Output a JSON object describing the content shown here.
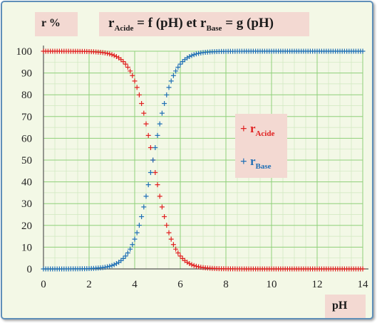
{
  "title": {
    "r1": "r",
    "s1": "Acide",
    "mid": " = f (pH) et ",
    "r2": "r",
    "s2": "Base",
    "end": " = g (pH)"
  },
  "chart_data": {
    "type": "scatter",
    "ylabel": "r %",
    "xlabel": "pH",
    "xlim": [
      0,
      14
    ],
    "ylim": [
      0,
      100
    ],
    "x_ticks": [
      0,
      2,
      4,
      6,
      8,
      10,
      12,
      14
    ],
    "y_ticks": [
      0,
      10,
      20,
      30,
      40,
      50,
      60,
      70,
      80,
      90,
      100
    ],
    "grid": true,
    "legend_position": "right",
    "pKa": 4.8,
    "x_step": 0.1,
    "marker": "+",
    "series": [
      {
        "key": "acide",
        "name_main": "r",
        "name_sub": "Acide",
        "color": "#e02020"
      },
      {
        "key": "base",
        "name_main": "r",
        "name_sub": "Base",
        "color": "#1f6fb5"
      }
    ]
  }
}
